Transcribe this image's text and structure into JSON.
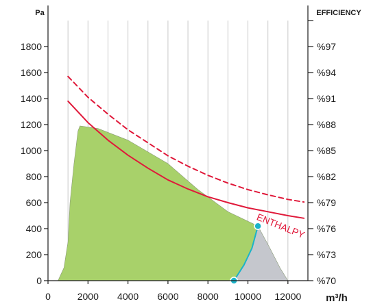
{
  "chart_data": {
    "type": "line",
    "left_axis": {
      "label": "Pa",
      "range": [
        0,
        2000
      ],
      "ticks": [
        "0",
        "200",
        "400",
        "600",
        "800",
        "1000",
        "1200",
        "1400",
        "1600",
        "1800"
      ]
    },
    "right_axis": {
      "label": "EFFICIENCY",
      "ticks": [
        "%70",
        "%73",
        "%76",
        "%79",
        "%82",
        "%85",
        "%88",
        "%91",
        "%94",
        "%97"
      ]
    },
    "x_axis": {
      "label": "m³/h",
      "range": [
        0,
        13000
      ],
      "ticks": [
        "0",
        "2000",
        "4000",
        "6000",
        "8000",
        "10000",
        "12000"
      ]
    },
    "grid": "vertical",
    "areas": [
      {
        "name": "green_operating_area",
        "color": "#a8d16a",
        "points": [
          [
            500,
            0
          ],
          [
            800,
            100
          ],
          [
            1000,
            300
          ],
          [
            1100,
            600
          ],
          [
            1300,
            900
          ],
          [
            1500,
            1150
          ],
          [
            1600,
            1190
          ],
          [
            2500,
            1170
          ],
          [
            4000,
            1080
          ],
          [
            6000,
            900
          ],
          [
            7500,
            700
          ],
          [
            9000,
            530
          ],
          [
            10500,
            420
          ],
          [
            10200,
            250
          ],
          [
            9800,
            120
          ],
          [
            9300,
            0
          ]
        ]
      },
      {
        "name": "grey_extension_area",
        "color": "#c5c7cd",
        "points": [
          [
            9300,
            0
          ],
          [
            9800,
            120
          ],
          [
            10200,
            250
          ],
          [
            10500,
            420
          ],
          [
            11100,
            250
          ],
          [
            11600,
            100
          ],
          [
            12000,
            0
          ]
        ]
      }
    ],
    "series": [
      {
        "name": "ENTHALPY",
        "style": "solid",
        "color": "#e0193a",
        "x": [
          1000,
          2000,
          3000,
          4000,
          5000,
          6000,
          7000,
          8000,
          9000,
          10000,
          11000,
          12000,
          12800
        ],
        "y": [
          1380,
          1215,
          1080,
          965,
          865,
          775,
          705,
          645,
          600,
          560,
          530,
          500,
          480
        ]
      },
      {
        "style": "dashed",
        "color": "#e0193a",
        "x": [
          1000,
          2000,
          3000,
          4000,
          5000,
          6000,
          7000,
          8000,
          9000,
          10000,
          11000,
          12000,
          12800
        ],
        "y": [
          1570,
          1410,
          1280,
          1160,
          1060,
          960,
          880,
          810,
          750,
          700,
          660,
          625,
          605
        ]
      },
      {
        "style": "solid",
        "color": "#1bb3c9",
        "x": [
          9300,
          9800,
          10200,
          10500
        ],
        "y": [
          0,
          120,
          250,
          420
        ],
        "markers": [
          [
            9300,
            0
          ],
          [
            10500,
            420
          ]
        ]
      }
    ],
    "annotations": [
      {
        "text": "ENTHALPY",
        "x": 10400,
        "y": 470,
        "rotation": 22,
        "color": "#e0193a"
      }
    ]
  }
}
